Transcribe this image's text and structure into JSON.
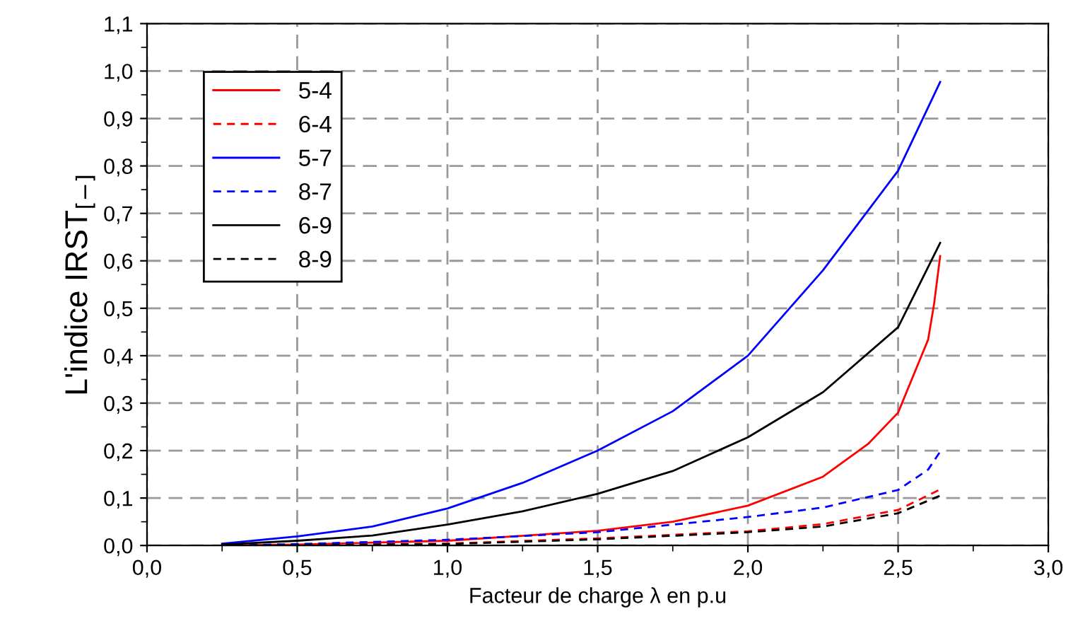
{
  "chart_data": {
    "type": "line",
    "xlabel": "Facteur de charge λ en p.u",
    "ylabel": "L'indice IRST$_{[−]}$",
    "xlim": [
      0,
      3
    ],
    "ylim": [
      0,
      1.1
    ],
    "xticks": [
      {
        "value": 0,
        "label": "0,0"
      },
      {
        "value": 0.5,
        "label": "0,5"
      },
      {
        "value": 1,
        "label": "1,0"
      },
      {
        "value": 1.5,
        "label": "1,5"
      },
      {
        "value": 2,
        "label": "2,0"
      },
      {
        "value": 2.5,
        "label": "2,5"
      },
      {
        "value": 3,
        "label": "3,0"
      }
    ],
    "yticks": [
      {
        "value": 0,
        "label": "0,0"
      },
      {
        "value": 0.1,
        "label": "0,1"
      },
      {
        "value": 0.2,
        "label": "0,2"
      },
      {
        "value": 0.3,
        "label": "0,3"
      },
      {
        "value": 0.4,
        "label": "0,4"
      },
      {
        "value": 0.5,
        "label": "0,5"
      },
      {
        "value": 0.6,
        "label": "0,6"
      },
      {
        "value": 0.7,
        "label": "0,7"
      },
      {
        "value": 0.8,
        "label": "0,8"
      },
      {
        "value": 0.9,
        "label": "0,9"
      },
      {
        "value": 1.0,
        "label": "1,0"
      },
      {
        "value": 1.1,
        "label": "1,1"
      }
    ],
    "grid": true,
    "legend": "top left",
    "marker": "none",
    "series": [
      {
        "name": "5-4",
        "color": "#ff0000",
        "line_style": "solid",
        "x": [
          0.25,
          0.5,
          1.0,
          1.5,
          1.75,
          2.0,
          2.25,
          2.4,
          2.5,
          2.6,
          2.62,
          2.64
        ],
        "values": [
          0.0,
          0.002,
          0.01,
          0.031,
          0.05,
          0.084,
          0.145,
          0.214,
          0.28,
          0.434,
          0.51,
          0.61
        ]
      },
      {
        "name": "6-4",
        "color": "#ff0000",
        "line_style": "dashed",
        "x": [
          0.25,
          0.5,
          1.0,
          1.5,
          2.0,
          2.25,
          2.5,
          2.64
        ],
        "values": [
          0.0,
          0.001,
          0.004,
          0.015,
          0.03,
          0.045,
          0.075,
          0.118
        ]
      },
      {
        "name": "5-7",
        "color": "#0000ff",
        "line_style": "solid",
        "x": [
          0.25,
          0.5,
          0.75,
          1.0,
          1.25,
          1.5,
          1.75,
          2.0,
          2.25,
          2.5,
          2.64
        ],
        "values": [
          0.004,
          0.019,
          0.04,
          0.078,
          0.132,
          0.2,
          0.283,
          0.4,
          0.58,
          0.79,
          0.977
        ]
      },
      {
        "name": "8-7",
        "color": "#0000ff",
        "line_style": "dashed",
        "x": [
          0.25,
          0.5,
          1.0,
          1.5,
          2.0,
          2.25,
          2.5,
          2.6,
          2.64
        ],
        "values": [
          0.0,
          0.003,
          0.012,
          0.028,
          0.06,
          0.08,
          0.117,
          0.16,
          0.198
        ]
      },
      {
        "name": "6-9",
        "color": "#000000",
        "line_style": "solid",
        "x": [
          0.25,
          0.5,
          0.75,
          1.0,
          1.25,
          1.5,
          1.75,
          2.0,
          2.25,
          2.5,
          2.64
        ],
        "values": [
          0.002,
          0.01,
          0.021,
          0.044,
          0.072,
          0.109,
          0.157,
          0.228,
          0.323,
          0.46,
          0.638
        ]
      },
      {
        "name": "8-9",
        "color": "#000000",
        "line_style": "dashed",
        "x": [
          0.25,
          0.5,
          1.0,
          1.5,
          2.0,
          2.25,
          2.5,
          2.64
        ],
        "values": [
          0.0,
          0.001,
          0.003,
          0.013,
          0.028,
          0.04,
          0.068,
          0.105
        ]
      }
    ]
  }
}
